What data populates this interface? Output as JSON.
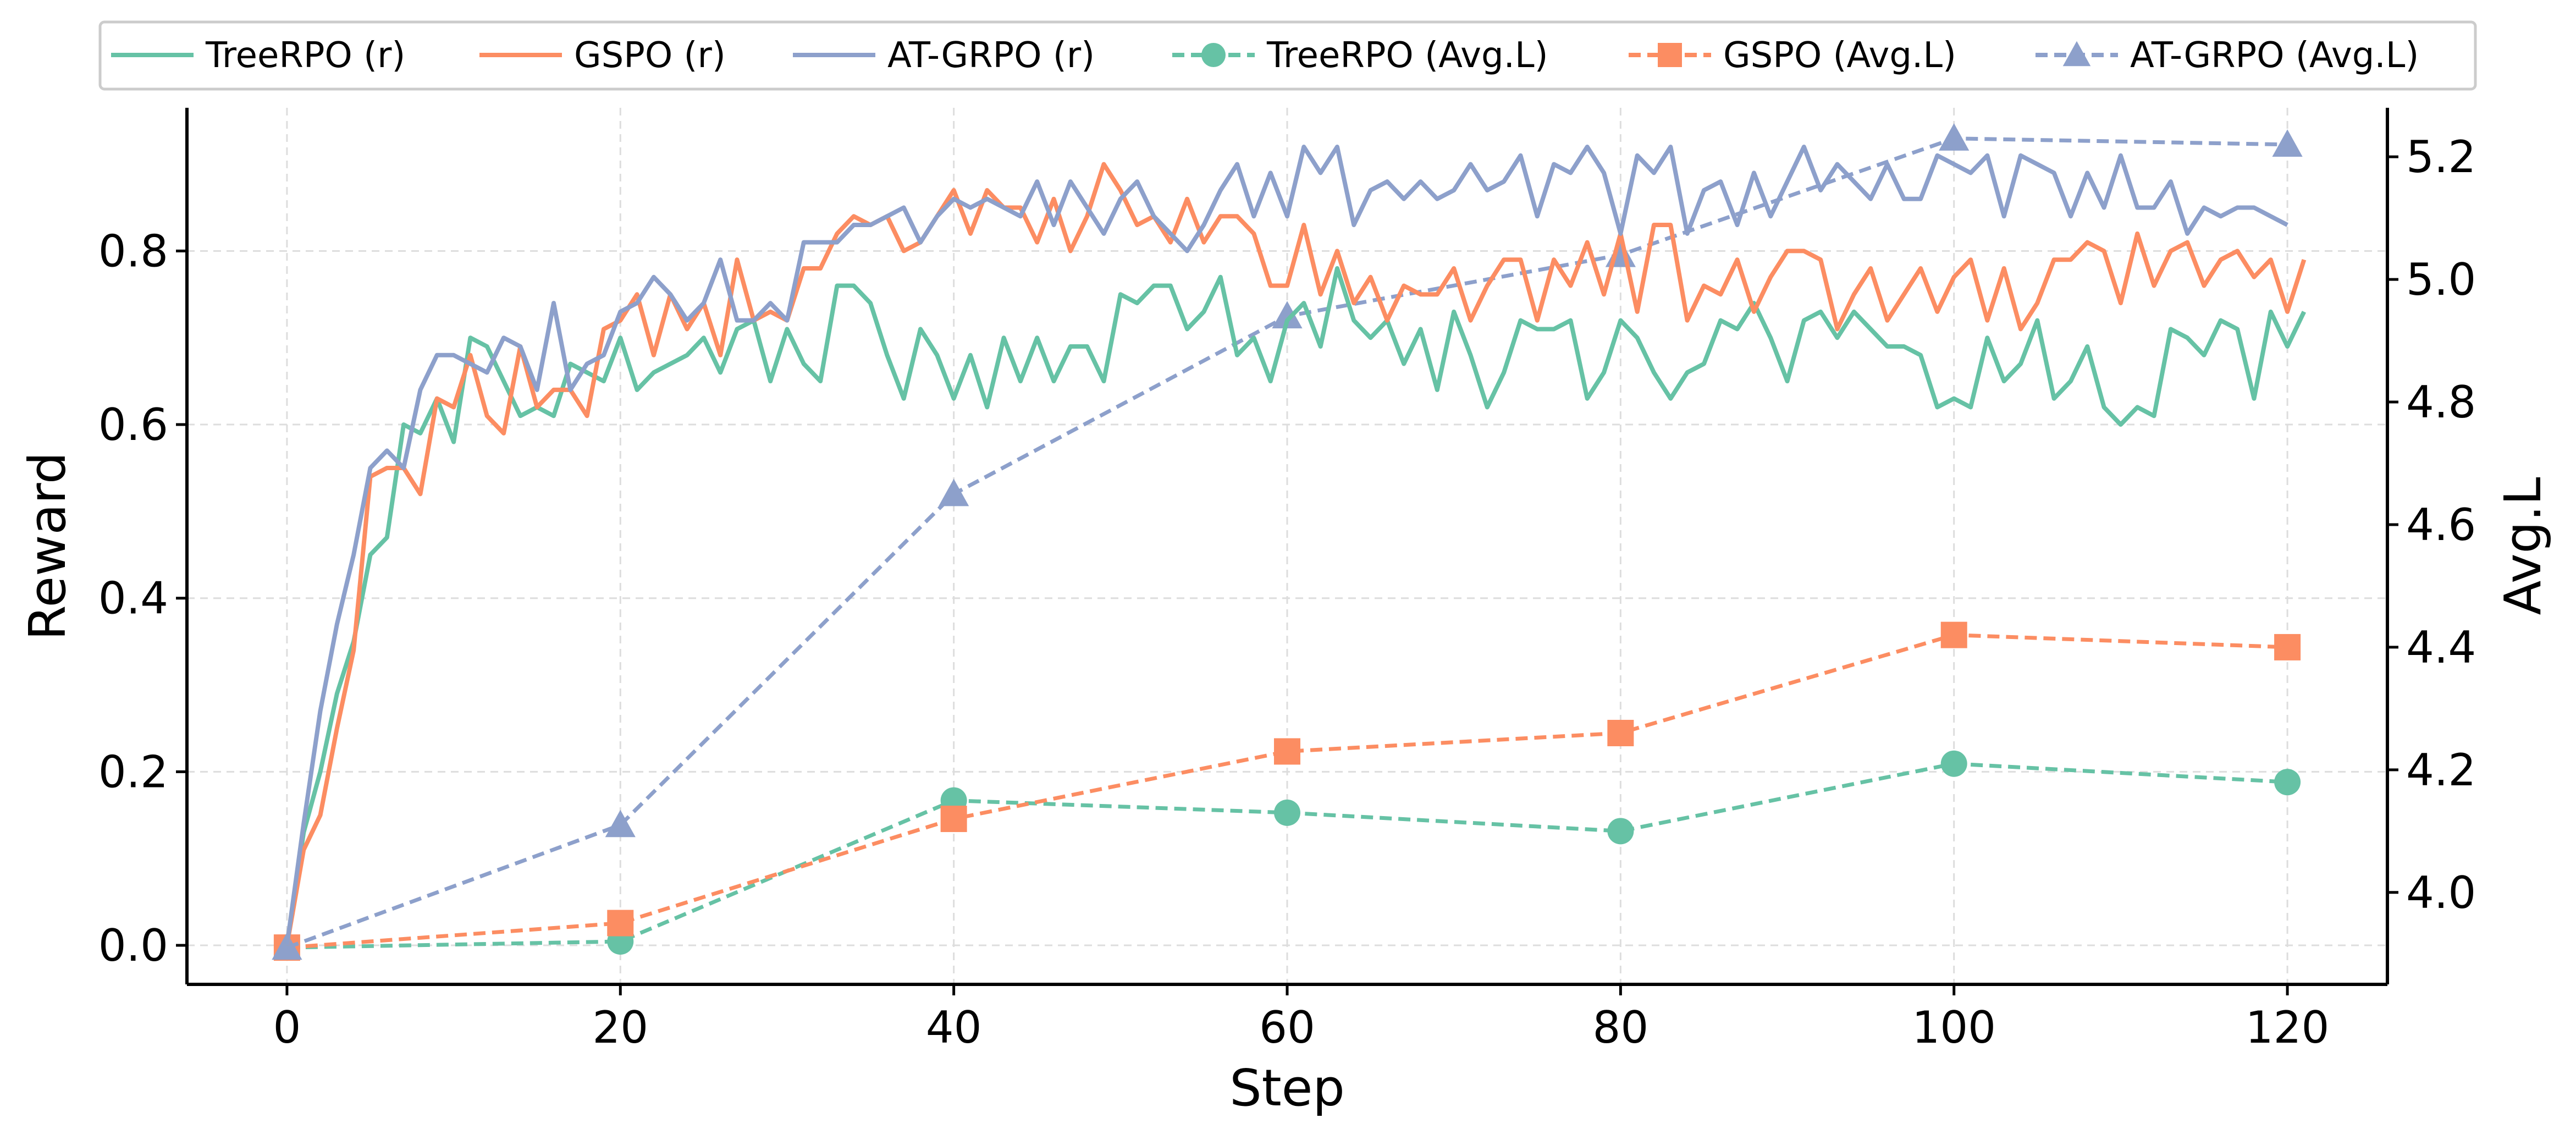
{
  "chart_data": {
    "type": "line",
    "xlabel": "Step",
    "ylabel_left": "Reward",
    "ylabel_right": "Avg.L",
    "xlim": [
      -6,
      126
    ],
    "ylim_left": [
      -0.045,
      0.965
    ],
    "ylim_right": [
      3.85,
      5.28
    ],
    "x_ticks": [
      0,
      20,
      40,
      60,
      80,
      100,
      120
    ],
    "x_tick_labels": [
      "0",
      "20",
      "40",
      "60",
      "80",
      "100",
      "120"
    ],
    "y_left_ticks": [
      0.0,
      0.2,
      0.4,
      0.6,
      0.8
    ],
    "y_left_tick_labels": [
      "0.0",
      "0.2",
      "0.4",
      "0.6",
      "0.8"
    ],
    "y_right_ticks": [
      4.0,
      4.2,
      4.4,
      4.6,
      4.8,
      5.0,
      5.2
    ],
    "y_right_tick_labels": [
      "4.0",
      "4.2",
      "4.4",
      "4.6",
      "4.8",
      "5.0",
      "5.2"
    ],
    "grid": true,
    "legend_position": "top-center",
    "reward_x_start": 0,
    "reward_series": [
      {
        "name": "TreeRPO (r)",
        "color": "#66c2a5",
        "values": [
          0.0,
          0.13,
          0.2,
          0.29,
          0.35,
          0.45,
          0.47,
          0.6,
          0.59,
          0.63,
          0.58,
          0.7,
          0.69,
          0.65,
          0.61,
          0.62,
          0.61,
          0.67,
          0.66,
          0.65,
          0.7,
          0.64,
          0.66,
          0.67,
          0.68,
          0.7,
          0.66,
          0.71,
          0.72,
          0.65,
          0.71,
          0.67,
          0.65,
          0.76,
          0.76,
          0.74,
          0.68,
          0.63,
          0.71,
          0.68,
          0.63,
          0.68,
          0.62,
          0.7,
          0.65,
          0.7,
          0.65,
          0.69,
          0.69,
          0.65,
          0.75,
          0.74,
          0.76,
          0.76,
          0.71,
          0.73,
          0.77,
          0.68,
          0.7,
          0.65,
          0.72,
          0.74,
          0.69,
          0.78,
          0.72,
          0.7,
          0.72,
          0.67,
          0.71,
          0.64,
          0.73,
          0.68,
          0.62,
          0.66,
          0.72,
          0.71,
          0.71,
          0.72,
          0.63,
          0.66,
          0.72,
          0.7,
          0.66,
          0.63,
          0.66,
          0.67,
          0.72,
          0.71,
          0.74,
          0.7,
          0.65,
          0.72,
          0.73,
          0.7,
          0.73,
          0.71,
          0.69,
          0.69,
          0.68,
          0.62,
          0.63,
          0.62,
          0.7,
          0.65,
          0.67,
          0.72,
          0.63,
          0.65,
          0.69,
          0.62,
          0.6,
          0.62,
          0.61,
          0.71,
          0.7,
          0.68,
          0.72,
          0.71,
          0.63,
          0.73,
          0.69,
          0.73
        ]
      },
      {
        "name": "GSPO (r)",
        "color": "#fc8d62",
        "values": [
          0.0,
          0.11,
          0.15,
          0.25,
          0.34,
          0.54,
          0.55,
          0.55,
          0.52,
          0.63,
          0.62,
          0.68,
          0.61,
          0.59,
          0.69,
          0.62,
          0.64,
          0.64,
          0.61,
          0.71,
          0.72,
          0.75,
          0.68,
          0.75,
          0.71,
          0.74,
          0.68,
          0.79,
          0.72,
          0.73,
          0.72,
          0.78,
          0.78,
          0.82,
          0.84,
          0.83,
          0.84,
          0.8,
          0.81,
          0.84,
          0.87,
          0.82,
          0.87,
          0.85,
          0.85,
          0.81,
          0.86,
          0.8,
          0.84,
          0.9,
          0.87,
          0.83,
          0.84,
          0.81,
          0.86,
          0.81,
          0.84,
          0.84,
          0.82,
          0.76,
          0.76,
          0.83,
          0.75,
          0.8,
          0.74,
          0.77,
          0.72,
          0.76,
          0.75,
          0.75,
          0.78,
          0.72,
          0.76,
          0.79,
          0.79,
          0.72,
          0.79,
          0.76,
          0.81,
          0.75,
          0.82,
          0.73,
          0.83,
          0.83,
          0.72,
          0.76,
          0.75,
          0.79,
          0.73,
          0.77,
          0.8,
          0.8,
          0.79,
          0.71,
          0.75,
          0.78,
          0.72,
          0.75,
          0.78,
          0.73,
          0.77,
          0.79,
          0.72,
          0.78,
          0.71,
          0.74,
          0.79,
          0.79,
          0.81,
          0.8,
          0.74,
          0.82,
          0.76,
          0.8,
          0.81,
          0.76,
          0.79,
          0.8,
          0.77,
          0.79,
          0.73,
          0.79
        ]
      },
      {
        "name": "AT-GRPO (r)",
        "color": "#8da0cb",
        "values": [
          0.0,
          0.14,
          0.27,
          0.37,
          0.45,
          0.55,
          0.57,
          0.55,
          0.64,
          0.68,
          0.68,
          0.67,
          0.66,
          0.7,
          0.69,
          0.64,
          0.74,
          0.64,
          0.67,
          0.68,
          0.73,
          0.74,
          0.77,
          0.75,
          0.72,
          0.74,
          0.79,
          0.72,
          0.72,
          0.74,
          0.72,
          0.81,
          0.81,
          0.81,
          0.83,
          0.83,
          0.84,
          0.85,
          0.81,
          0.84,
          0.86,
          0.85,
          0.86,
          0.85,
          0.84,
          0.88,
          0.83,
          0.88,
          0.85,
          0.82,
          0.86,
          0.88,
          0.84,
          0.82,
          0.8,
          0.83,
          0.87,
          0.9,
          0.84,
          0.89,
          0.84,
          0.92,
          0.89,
          0.92,
          0.83,
          0.87,
          0.88,
          0.86,
          0.88,
          0.86,
          0.87,
          0.9,
          0.87,
          0.88,
          0.91,
          0.84,
          0.9,
          0.89,
          0.92,
          0.89,
          0.82,
          0.91,
          0.89,
          0.92,
          0.82,
          0.87,
          0.88,
          0.83,
          0.89,
          0.84,
          0.88,
          0.92,
          0.87,
          0.9,
          0.88,
          0.86,
          0.9,
          0.86,
          0.86,
          0.91,
          0.9,
          0.89,
          0.91,
          0.84,
          0.91,
          0.9,
          0.89,
          0.84,
          0.89,
          0.85,
          0.91,
          0.85,
          0.85,
          0.88,
          0.82,
          0.85,
          0.84,
          0.85,
          0.85,
          0.84,
          0.83
        ]
      }
    ],
    "avgl_series": [
      {
        "name": "TreeRPO (Avg.L)",
        "color": "#66c2a5",
        "marker": "circle",
        "x": [
          0,
          20,
          40,
          60,
          80,
          100,
          120
        ],
        "values": [
          3.91,
          3.92,
          4.15,
          4.13,
          4.1,
          4.21,
          4.18
        ]
      },
      {
        "name": "GSPO (Avg.L)",
        "color": "#fc8d62",
        "marker": "square",
        "x": [
          0,
          20,
          40,
          60,
          80,
          100,
          120
        ],
        "values": [
          3.91,
          3.95,
          4.12,
          4.23,
          4.26,
          4.42,
          4.4
        ]
      },
      {
        "name": "AT-GRPO (Avg.L)",
        "color": "#8da0cb",
        "marker": "triangle",
        "x": [
          0,
          20,
          40,
          60,
          80,
          100,
          120
        ],
        "values": [
          3.91,
          4.11,
          4.65,
          4.94,
          5.04,
          5.23,
          5.22
        ]
      }
    ],
    "legend": [
      {
        "label": "TreeRPO (r)",
        "color": "#66c2a5",
        "style": "solid",
        "marker": "none"
      },
      {
        "label": "GSPO (r)",
        "color": "#fc8d62",
        "style": "solid",
        "marker": "none"
      },
      {
        "label": "AT-GRPO (r)",
        "color": "#8da0cb",
        "style": "solid",
        "marker": "none"
      },
      {
        "label": "TreeRPO (Avg.L)",
        "color": "#66c2a5",
        "style": "dashed",
        "marker": "circle"
      },
      {
        "label": "GSPO (Avg.L)",
        "color": "#fc8d62",
        "style": "dashed",
        "marker": "square"
      },
      {
        "label": "AT-GRPO (Avg.L)",
        "color": "#8da0cb",
        "style": "dashed",
        "marker": "triangle"
      }
    ]
  }
}
